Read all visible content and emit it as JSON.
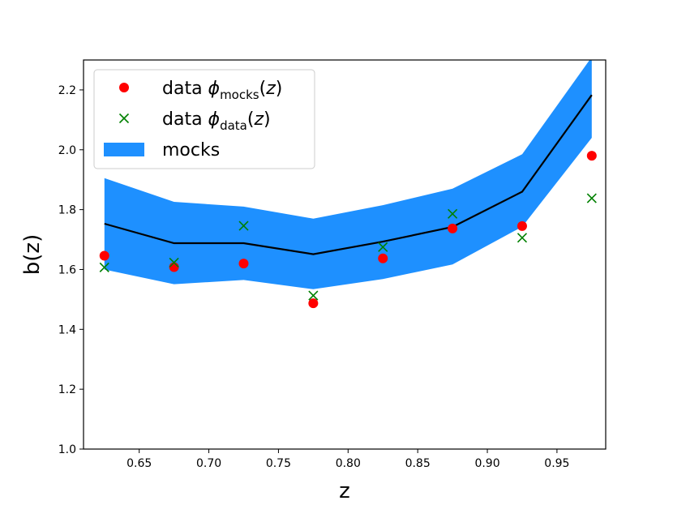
{
  "chart_data": {
    "type": "line",
    "xlabel": "z",
    "ylabel": "b(z)",
    "xlim": [
      0.61,
      0.985
    ],
    "ylim": [
      1.0,
      2.3
    ],
    "xticks": [
      "0.65",
      "0.70",
      "0.75",
      "0.80",
      "0.85",
      "0.90",
      "0.95"
    ],
    "yticks": [
      "1.0",
      "1.2",
      "1.4",
      "1.6",
      "1.8",
      "2.0",
      "2.2"
    ],
    "grid": false,
    "legend_position": "upper-left",
    "x": [
      0.625,
      0.675,
      0.725,
      0.775,
      0.825,
      0.875,
      0.925,
      0.975
    ],
    "series": [
      {
        "name": "mocks",
        "kind": "line-band",
        "color": "#000000",
        "band_color": "#1e90ff",
        "values": [
          1.753,
          1.688,
          1.688,
          1.651,
          1.693,
          1.742,
          1.86,
          2.183
        ],
        "lower": [
          1.6,
          1.551,
          1.565,
          1.534,
          1.568,
          1.617,
          1.743,
          2.04
        ],
        "upper": [
          1.905,
          1.826,
          1.81,
          1.77,
          1.815,
          1.87,
          1.985,
          2.31
        ]
      },
      {
        "name": "data φmocks(z)",
        "kind": "points",
        "marker": "circle",
        "color": "#ff0000",
        "values": [
          1.646,
          1.608,
          1.62,
          1.487,
          1.637,
          1.737,
          1.745,
          1.98
        ]
      },
      {
        "name": "data φdata(z)",
        "kind": "points",
        "marker": "x",
        "color": "#008000",
        "values": [
          1.607,
          1.623,
          1.746,
          1.513,
          1.675,
          1.786,
          1.706,
          1.838
        ]
      }
    ],
    "legend": [
      {
        "prefix": "data ",
        "sub": "mocks"
      },
      {
        "prefix": "data ",
        "sub": "data"
      },
      {
        "prefix": "mocks",
        "sub": ""
      }
    ]
  }
}
